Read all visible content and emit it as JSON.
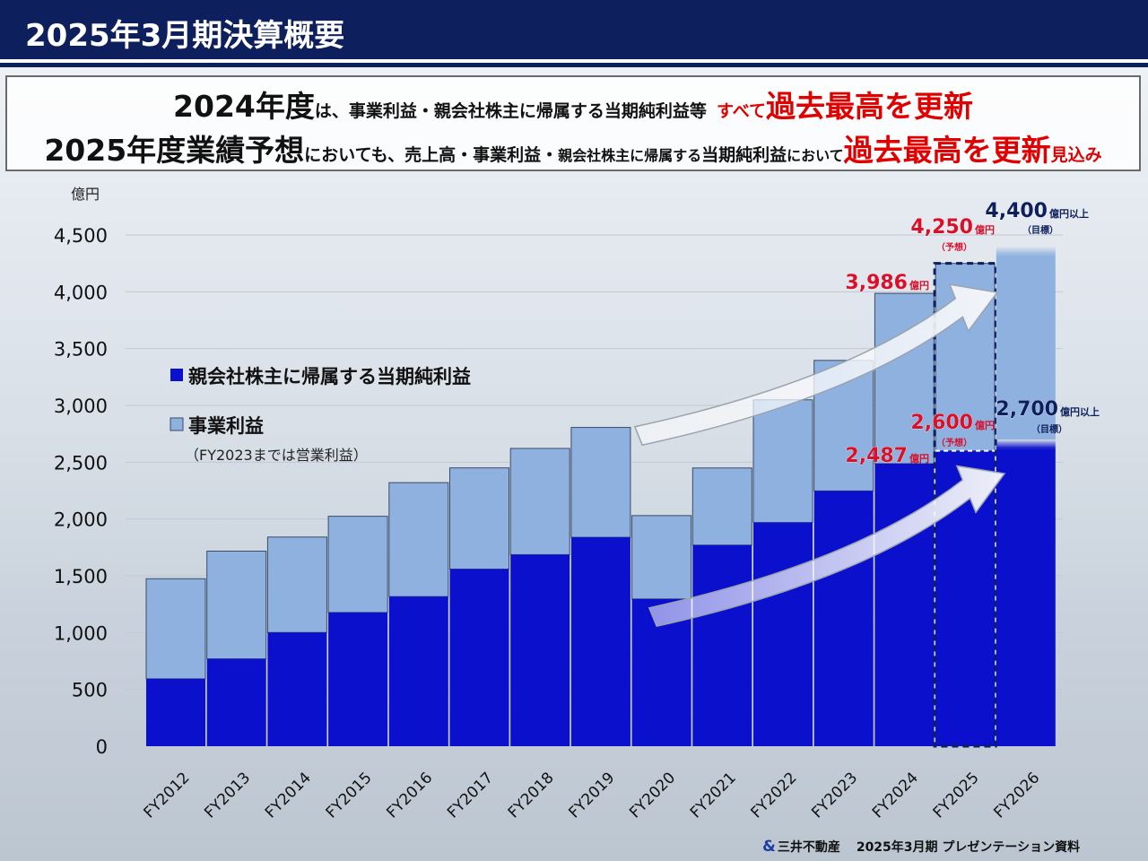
{
  "header": {
    "title": "2025年3月期決算概要"
  },
  "banner": {
    "line1": [
      {
        "text": "2024年度",
        "style": "big"
      },
      {
        "text": "は、事業利益・親会社株主に帰属する当期純利益等",
        "style": "sm"
      },
      {
        "text": "すべて",
        "style": "sm-red"
      },
      {
        "text": "過去最高を更新",
        "style": "big-red"
      }
    ],
    "line2": [
      {
        "text": "2025年度業績予想",
        "style": "big"
      },
      {
        "text": "においても、",
        "style": "sm"
      },
      {
        "text": "売上高・事業利益・",
        "style": "sm"
      },
      {
        "text": "親会社株主に帰属する",
        "style": "xs"
      },
      {
        "text": "当期純利益",
        "style": "sm"
      },
      {
        "text": "において",
        "style": "xs"
      },
      {
        "text": "過去最高を更新",
        "style": "big-red"
      },
      {
        "text": "見込み",
        "style": "sm-red"
      }
    ]
  },
  "chart_data": {
    "type": "bar",
    "stacked": "overlay",
    "unit_label": "億円",
    "ylim": [
      0,
      4500
    ],
    "yticks": [
      "4,500",
      "4,000",
      "3,500",
      "3,000",
      "2,500",
      "2,000",
      "1,500",
      "1,000",
      "500",
      "0"
    ],
    "ytick_values": [
      4500,
      4000,
      3500,
      3000,
      2500,
      2000,
      1500,
      1000,
      500,
      0
    ],
    "grid": true,
    "categories": [
      "FY2012",
      "FY2013",
      "FY2014",
      "FY2015",
      "FY2016",
      "FY2017",
      "FY2018",
      "FY2019",
      "FY2020",
      "FY2021",
      "FY2022",
      "FY2023",
      "FY2024",
      "FY2025",
      "FY2026"
    ],
    "series": [
      {
        "name": "事業利益",
        "color": "#8fb1e0",
        "values": [
          1474,
          1717,
          1841,
          2024,
          2320,
          2450,
          2621,
          2806,
          2030,
          2449,
          3049,
          3396,
          3986,
          4250,
          4400
        ]
      },
      {
        "name": "親会社株主に帰属する当期純利益",
        "color": "#0a10cc",
        "values": [
          593,
          769,
          1001,
          1177,
          1317,
          1559,
          1686,
          1839,
          1296,
          1770,
          1969,
          2247,
          2487,
          2600,
          2700
        ]
      }
    ],
    "legend": {
      "placement": "left",
      "items": [
        {
          "label": "親会社株主に帰属する当期純利益",
          "color": "#0a10cc"
        },
        {
          "label": "事業利益",
          "color": "#8fb1e0"
        }
      ],
      "note": "（FY2023までは営業利益）"
    },
    "annotations": [
      {
        "category": "FY2024",
        "value": "3,986",
        "unit": "億円",
        "sub": "",
        "color": "#d8102a"
      },
      {
        "category": "FY2024",
        "value": "2,487",
        "unit": "億円",
        "sub": "",
        "color": "#d8102a"
      },
      {
        "category": "FY2025",
        "value": "4,250",
        "unit": "億円",
        "sub": "（予想）",
        "color": "#d8102a"
      },
      {
        "category": "FY2025",
        "value": "2,600",
        "unit": "億円",
        "sub": "（予想）",
        "color": "#d8102a"
      },
      {
        "category": "FY2026",
        "value": "4,400",
        "unit": "億円以上",
        "sub": "（目標）",
        "color": "#0d1f5c"
      },
      {
        "category": "FY2026",
        "value": "2,700",
        "unit": "億円以上",
        "sub": "（目標）",
        "color": "#0d1f5c"
      }
    ]
  },
  "footer": {
    "logo": "&",
    "company": "三井不動産",
    "doc": "2025年3月期  プレゼンテーション資料"
  }
}
